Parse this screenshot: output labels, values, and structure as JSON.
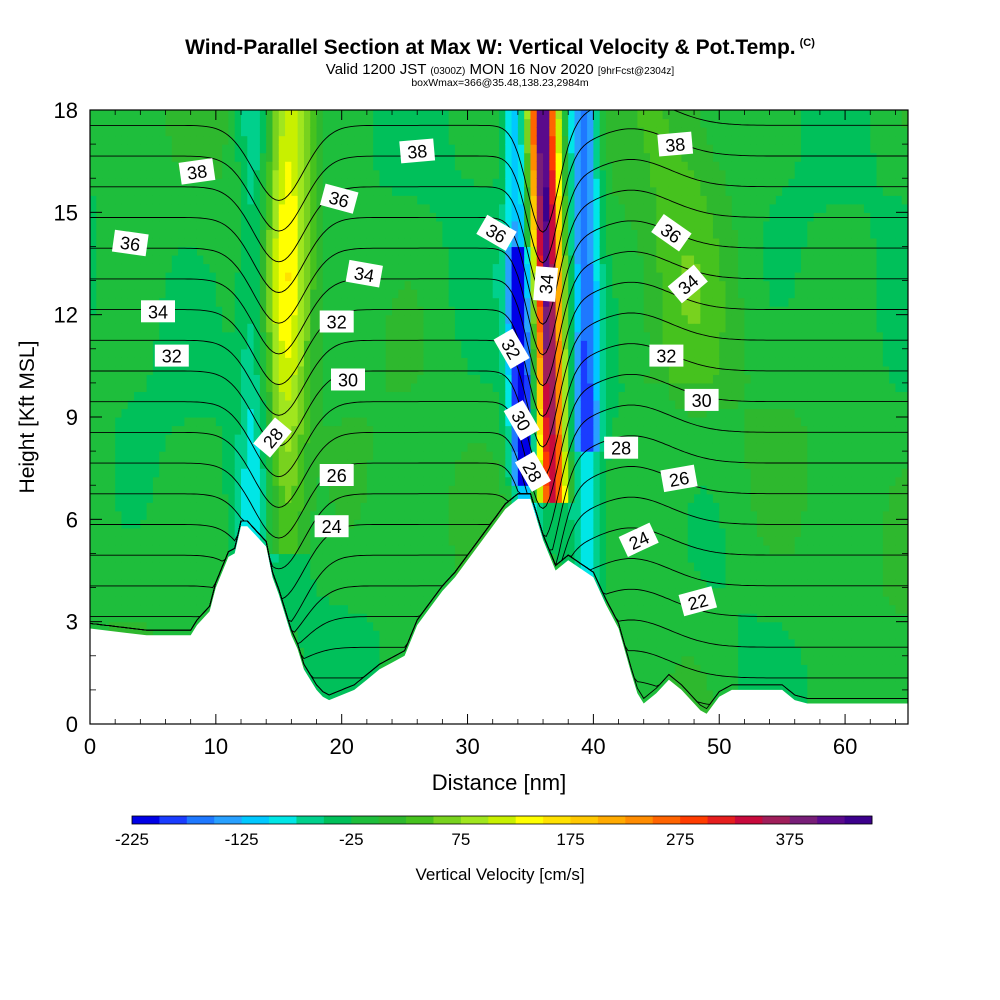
{
  "title": {
    "main": "Wind-Parallel Section at Max W: Vertical Velocity & Pot.Temp.",
    "copyright": "(C)",
    "valid_prefix": "Valid 1200 JST",
    "valid_utc": "(0300Z)",
    "valid_date": "MON 16 Nov 2020",
    "forecast": "[9hrFcst@2304z]",
    "box_info": "boxWmax=366@35.48,138.23,2984m"
  },
  "chart_data": {
    "type": "heatmap",
    "xlabel": "Distance [nm]",
    "ylabel": "Height [Kft MSL]",
    "xlim": [
      0,
      65
    ],
    "ylim": [
      0,
      18
    ],
    "x_ticks": [
      0,
      10,
      20,
      30,
      40,
      50,
      60
    ],
    "y_ticks": [
      0,
      3,
      6,
      9,
      12,
      15,
      18
    ],
    "colorbar": {
      "label": "Vertical Velocity [cm/s]",
      "tick_labels": [
        "-225",
        "-125",
        "-25",
        "75",
        "175",
        "275",
        "375"
      ],
      "tick_values": [
        -225,
        -125,
        -25,
        75,
        175,
        275,
        375
      ],
      "range": [
        -225,
        450
      ],
      "step": 25,
      "colors": [
        "#0000e6",
        "#1a3cff",
        "#1e78ff",
        "#28a0ff",
        "#00c8ff",
        "#00e6e6",
        "#00d08c",
        "#00c05a",
        "#1ebe3c",
        "#2eb82e",
        "#46c21e",
        "#78d21e",
        "#a0e61e",
        "#c8f000",
        "#ffff00",
        "#ffe100",
        "#ffc800",
        "#ffaa00",
        "#ff8c00",
        "#ff6400",
        "#ff3c00",
        "#e61e1e",
        "#c80a3c",
        "#a01e5a",
        "#781e78",
        "#5a0a8c",
        "#3c008c"
      ]
    },
    "background_value": -15,
    "terrain": {
      "x": [
        0,
        4.5,
        5,
        8,
        8.5,
        9.5,
        10,
        11,
        11.5,
        12,
        12.5,
        14,
        14.5,
        15,
        16,
        16.5,
        17,
        18,
        18.5,
        19,
        21,
        22,
        23,
        24,
        25,
        26,
        27,
        28,
        29,
        30,
        31,
        32,
        33,
        34,
        35,
        36,
        37,
        38,
        40,
        41,
        42,
        43,
        43.5,
        44,
        45,
        46,
        47,
        48,
        48.5,
        49,
        50,
        51,
        55,
        56,
        57,
        65
      ],
      "h": [
        2.8,
        2.6,
        2.6,
        2.6,
        2.9,
        3.3,
        4.0,
        4.9,
        5.0,
        5.8,
        5.8,
        5.2,
        4.3,
        3.8,
        2.6,
        2.2,
        1.6,
        1.0,
        0.8,
        0.7,
        1.0,
        1.3,
        1.6,
        1.8,
        2.0,
        2.9,
        3.4,
        3.9,
        4.3,
        4.8,
        5.3,
        5.8,
        6.3,
        6.6,
        6.6,
        5.4,
        4.5,
        4.8,
        4.3,
        3.5,
        2.8,
        1.5,
        0.9,
        0.6,
        0.9,
        1.3,
        1.0,
        0.6,
        0.4,
        0.3,
        0.8,
        1.0,
        1.0,
        0.7,
        0.6,
        0.6
      ]
    },
    "updrafts": [
      {
        "center_x": 36.8,
        "top_peak": 450,
        "base_peak": 375,
        "description": "primary updraft core near 34-38 nm"
      },
      {
        "center_x": 15.5,
        "top_peak": 140,
        "base_peak": 80,
        "description": "secondary updraft near 14-17 nm"
      },
      {
        "center_x": 47,
        "top_peak": 40,
        "base_peak": 20,
        "description": "weak upward motion"
      }
    ],
    "downdrafts": [
      {
        "center_x": 34.5,
        "peak": -225,
        "description": "downdraft west of main updraft"
      },
      {
        "center_x": 39.5,
        "peak": -160,
        "description": "downdraft east of main updraft"
      },
      {
        "center_x": 13.0,
        "peak": -60,
        "description": "weak downdraft west of secondary updraft"
      }
    ],
    "theta_contours": {
      "levels": [
        20,
        21,
        22,
        23,
        24,
        25,
        26,
        27,
        28,
        29,
        30,
        31,
        32,
        33,
        34,
        35,
        36,
        37,
        38,
        39,
        40
      ],
      "labels": [
        {
          "text": "38",
          "x": 8.5,
          "y": 16.2,
          "angle": -8
        },
        {
          "text": "38",
          "x": 26,
          "y": 16.8,
          "angle": -5
        },
        {
          "text": "38",
          "x": 46.5,
          "y": 17.0,
          "angle": -5
        },
        {
          "text": "36",
          "x": 3.2,
          "y": 14.1,
          "angle": 8
        },
        {
          "text": "36",
          "x": 19.8,
          "y": 15.4,
          "angle": 15
        },
        {
          "text": "36",
          "x": 32.3,
          "y": 14.4,
          "angle": 30
        },
        {
          "text": "36",
          "x": 46.2,
          "y": 14.4,
          "angle": 35
        },
        {
          "text": "34",
          "x": 5.4,
          "y": 12.1,
          "angle": 0
        },
        {
          "text": "34",
          "x": 21.8,
          "y": 13.2,
          "angle": 10
        },
        {
          "text": "34",
          "x": 36.2,
          "y": 12.9,
          "angle": -85
        },
        {
          "text": "34",
          "x": 47.5,
          "y": 12.9,
          "angle": -40
        },
        {
          "text": "32",
          "x": 6.5,
          "y": 10.8,
          "angle": 0
        },
        {
          "text": "32",
          "x": 19.6,
          "y": 11.8,
          "angle": 0
        },
        {
          "text": "32",
          "x": 33.5,
          "y": 11.0,
          "angle": 60
        },
        {
          "text": "32",
          "x": 45.8,
          "y": 10.8,
          "angle": 0
        },
        {
          "text": "30",
          "x": 20.5,
          "y": 10.1,
          "angle": 0
        },
        {
          "text": "30",
          "x": 34.3,
          "y": 8.9,
          "angle": 60
        },
        {
          "text": "30",
          "x": 48.6,
          "y": 9.5,
          "angle": 0
        },
        {
          "text": "28",
          "x": 14.5,
          "y": 8.4,
          "angle": -50
        },
        {
          "text": "28",
          "x": 35.2,
          "y": 7.4,
          "angle": 60
        },
        {
          "text": "28",
          "x": 42.2,
          "y": 8.1,
          "angle": 0
        },
        {
          "text": "26",
          "x": 19.6,
          "y": 7.3,
          "angle": 0
        },
        {
          "text": "26",
          "x": 46.8,
          "y": 7.2,
          "angle": -10
        },
        {
          "text": "24",
          "x": 19.2,
          "y": 5.8,
          "angle": 0
        },
        {
          "text": "24",
          "x": 43.6,
          "y": 5.4,
          "angle": -25
        },
        {
          "text": "22",
          "x": 48.3,
          "y": 3.6,
          "angle": -15
        }
      ]
    }
  }
}
